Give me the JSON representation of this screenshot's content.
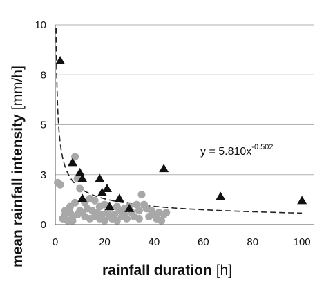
{
  "chart_data": {
    "type": "scatter",
    "xlabel": "rainfall duration",
    "xunit": "[h]",
    "ylabel": "mean rainfall intensity",
    "yunit": "[mm/h]",
    "xlim": [
      0,
      105
    ],
    "ylim": [
      0,
      10
    ],
    "x_ticks": [
      "0",
      "20",
      "40",
      "60",
      "80",
      "100"
    ],
    "y_ticks": [
      "0",
      "3",
      "5",
      "8",
      "10"
    ],
    "y_tick_values": [
      0,
      2.5,
      5,
      7.5,
      10
    ],
    "grid": "horizontal",
    "colors": {
      "triangle": "#111111",
      "circle": "#a8a8a8",
      "fit": "#222222",
      "grid": "#b0b0b0"
    },
    "series": [
      {
        "marker": "triangle",
        "x": [
          2,
          7,
          10,
          11,
          11,
          18,
          19,
          21,
          22,
          26,
          30,
          44,
          67,
          100
        ],
        "y": [
          8.2,
          3.1,
          2.6,
          2.3,
          1.3,
          2.3,
          1.6,
          1.8,
          0.9,
          1.3,
          0.8,
          2.8,
          1.4,
          1.2
        ]
      },
      {
        "marker": "circle",
        "x": [
          1,
          2,
          3,
          4,
          4,
          5,
          6,
          6,
          7,
          7,
          8,
          8,
          9,
          9,
          10,
          10,
          11,
          12,
          12,
          13,
          14,
          14,
          15,
          16,
          16,
          17,
          18,
          18,
          19,
          20,
          20,
          21,
          22,
          22,
          23,
          24,
          25,
          25,
          26,
          27,
          28,
          28,
          29,
          30,
          31,
          32,
          33,
          34,
          34,
          35,
          36,
          37,
          38,
          39,
          40,
          41,
          42,
          43,
          44,
          45
        ],
        "y": [
          2.1,
          2.0,
          0.3,
          0.5,
          0.7,
          0.2,
          0.6,
          0.9,
          0.4,
          0.2,
          1.1,
          3.4,
          0.5,
          2.3,
          0.7,
          1.8,
          0.6,
          1.1,
          0.4,
          0.8,
          0.3,
          1.3,
          0.7,
          0.4,
          1.2,
          0.6,
          0.3,
          0.9,
          0.5,
          0.2,
          1.0,
          0.6,
          0.4,
          0.8,
          0.3,
          0.5,
          0.9,
          0.2,
          0.7,
          0.4,
          0.8,
          0.5,
          0.3,
          0.9,
          0.6,
          0.4,
          1.0,
          0.7,
          0.3,
          1.5,
          1.0,
          0.8,
          0.4,
          0.7,
          0.5,
          0.3,
          0.6,
          0.2,
          0.5,
          0.6
        ]
      }
    ],
    "fit": {
      "equation": "y = 5.810x",
      "exponent": "-0.502",
      "coefficient": 5.81,
      "power": -0.502,
      "x_range": [
        0.35,
        100
      ],
      "style": "dashed"
    }
  }
}
